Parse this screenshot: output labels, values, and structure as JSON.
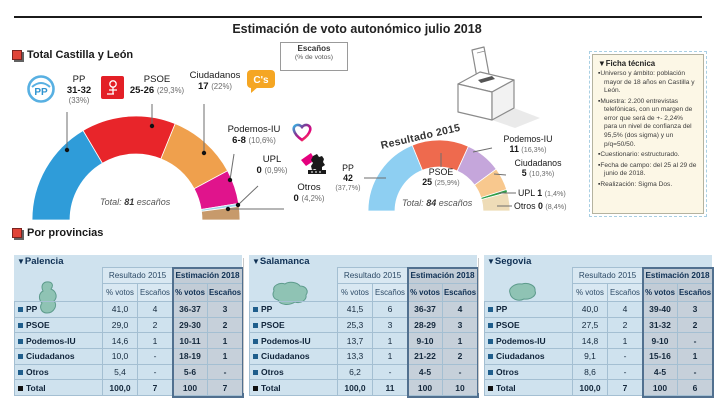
{
  "title": "Estimación de voto autonómico julio 2018",
  "ui": {
    "marker": "▼",
    "total_region_label": "Total Castilla y León",
    "por_provincias_label": "Por provincias",
    "legend_box": {
      "line1": "Escaños",
      "line2": "(% de votos)"
    }
  },
  "colors": {
    "panel_blue": "#cfe2ee",
    "estimacion_col": "#c6d0da",
    "ficha_bg": "#fcf7e6",
    "map_icon": "#8fc3b4"
  },
  "chart_data": [
    {
      "type": "donut-semicircle",
      "name": "estimacion-julio-2018",
      "total": {
        "prefix": "Total:",
        "value": "81",
        "unit": "escaños"
      },
      "series": [
        {
          "party": "PP",
          "seats": "31-32",
          "pct": "(33%)",
          "value": 33.0,
          "color": "#2f9cd9"
        },
        {
          "party": "PSOE",
          "seats": "25-26",
          "pct": "(29,3%)",
          "value": 29.3,
          "color": "#e8252a"
        },
        {
          "party": "Ciudadanos",
          "seats": "17",
          "pct": "(22%)",
          "value": 22.0,
          "color": "#efa04d"
        },
        {
          "party": "Podemos-IU",
          "seats": "6-8",
          "pct": "(10,6%)",
          "value": 10.6,
          "color": "#e0148c"
        },
        {
          "party": "UPL",
          "seats": "0",
          "pct": "(0,9%)",
          "value": 0.9,
          "color": "#9fd8ea"
        },
        {
          "party": "Otros",
          "seats": "0",
          "pct": "(4,2%)",
          "value": 4.2,
          "color": "#c79a6b"
        }
      ]
    },
    {
      "type": "donut-semicircle",
      "name": "resultado-2015",
      "title": "Resultado 2015",
      "total": {
        "prefix": "Total:",
        "value": "84",
        "unit": "escaños"
      },
      "series": [
        {
          "party": "PP",
          "seats": "42",
          "pct": "(37,7%)",
          "value": 37.7,
          "color": "#8ecff2"
        },
        {
          "party": "PSOE",
          "seats": "25",
          "pct": "(25,9%)",
          "value": 25.9,
          "color": "#ee6a4e"
        },
        {
          "party": "Podemos-IU",
          "seats": "11",
          "pct": "(16,3%)",
          "value": 16.3,
          "color": "#c5a6db"
        },
        {
          "party": "Ciudadanos",
          "seats": "5",
          "pct": "(10,3%)",
          "value": 10.3,
          "color": "#f8c88e"
        },
        {
          "party": "UPL",
          "seats": "1",
          "pct": "(1,4%)",
          "value": 1.4,
          "color": "#2f9e48"
        },
        {
          "party": "Otros",
          "seats": "0",
          "pct": "(8,4%)",
          "value": 8.4,
          "color": "#eedcb7"
        }
      ]
    }
  ],
  "ficha": {
    "title": "Ficha técnica",
    "items": [
      "Universo y ámbito: población mayor de 18 años en Castilla y León.",
      "Muestra: 2.200 entrevistas telefónicas, con un margen de error que será de +- 2,24% para un nivel de confianza del 95,5% (dos sigma) y un p/q=50/50.",
      "Cuestionario: estructurado.",
      "Fecha de campo: del 25 al 29 de junio de 2018.",
      "Realización: Sigma Dos."
    ]
  },
  "tables": {
    "col_groups": [
      "Resultado 2015",
      "Estimación 2018"
    ],
    "sub_headers": [
      "% votos",
      "Escaños",
      "% votos",
      "Escaños"
    ],
    "provinces": [
      {
        "name": "Palencia",
        "rows": [
          {
            "party": "PP",
            "rv": "41,0",
            "re": "4",
            "ev": "36-37",
            "ee": "3"
          },
          {
            "party": "PSOE",
            "rv": "29,0",
            "re": "2",
            "ev": "29-30",
            "ee": "2"
          },
          {
            "party": "Podemos-IU",
            "rv": "14,6",
            "re": "1",
            "ev": "10-11",
            "ee": "1"
          },
          {
            "party": "Ciudadanos",
            "rv": "10,0",
            "re": "-",
            "ev": "18-19",
            "ee": "1"
          },
          {
            "party": "Otros",
            "rv": "5,4",
            "re": "-",
            "ev": "5-6",
            "ee": "-"
          },
          {
            "party": "Total",
            "rv": "100,0",
            "re": "7",
            "ev": "100",
            "ee": "7"
          }
        ]
      },
      {
        "name": "Salamanca",
        "rows": [
          {
            "party": "PP",
            "rv": "41,5",
            "re": "6",
            "ev": "36-37",
            "ee": "4"
          },
          {
            "party": "PSOE",
            "rv": "25,3",
            "re": "3",
            "ev": "28-29",
            "ee": "3"
          },
          {
            "party": "Podemos-IU",
            "rv": "13,7",
            "re": "1",
            "ev": "9-10",
            "ee": "1"
          },
          {
            "party": "Ciudadanos",
            "rv": "13,3",
            "re": "1",
            "ev": "21-22",
            "ee": "2"
          },
          {
            "party": "Otros",
            "rv": "6,2",
            "re": "-",
            "ev": "4-5",
            "ee": "-"
          },
          {
            "party": "Total",
            "rv": "100,0",
            "re": "11",
            "ev": "100",
            "ee": "10"
          }
        ]
      },
      {
        "name": "Segovia",
        "rows": [
          {
            "party": "PP",
            "rv": "40,0",
            "re": "4",
            "ev": "39-40",
            "ee": "3"
          },
          {
            "party": "PSOE",
            "rv": "27,5",
            "re": "2",
            "ev": "31-32",
            "ee": "2"
          },
          {
            "party": "Podemos-IU",
            "rv": "14,8",
            "re": "1",
            "ev": "9-10",
            "ee": "-"
          },
          {
            "party": "Ciudadanos",
            "rv": "9,1",
            "re": "-",
            "ev": "15-16",
            "ee": "1"
          },
          {
            "party": "Otros",
            "rv": "8,6",
            "re": "-",
            "ev": "4-5",
            "ee": "-"
          },
          {
            "party": "Total",
            "rv": "100,0",
            "re": "7",
            "ev": "100",
            "ee": "6"
          }
        ]
      }
    ]
  }
}
